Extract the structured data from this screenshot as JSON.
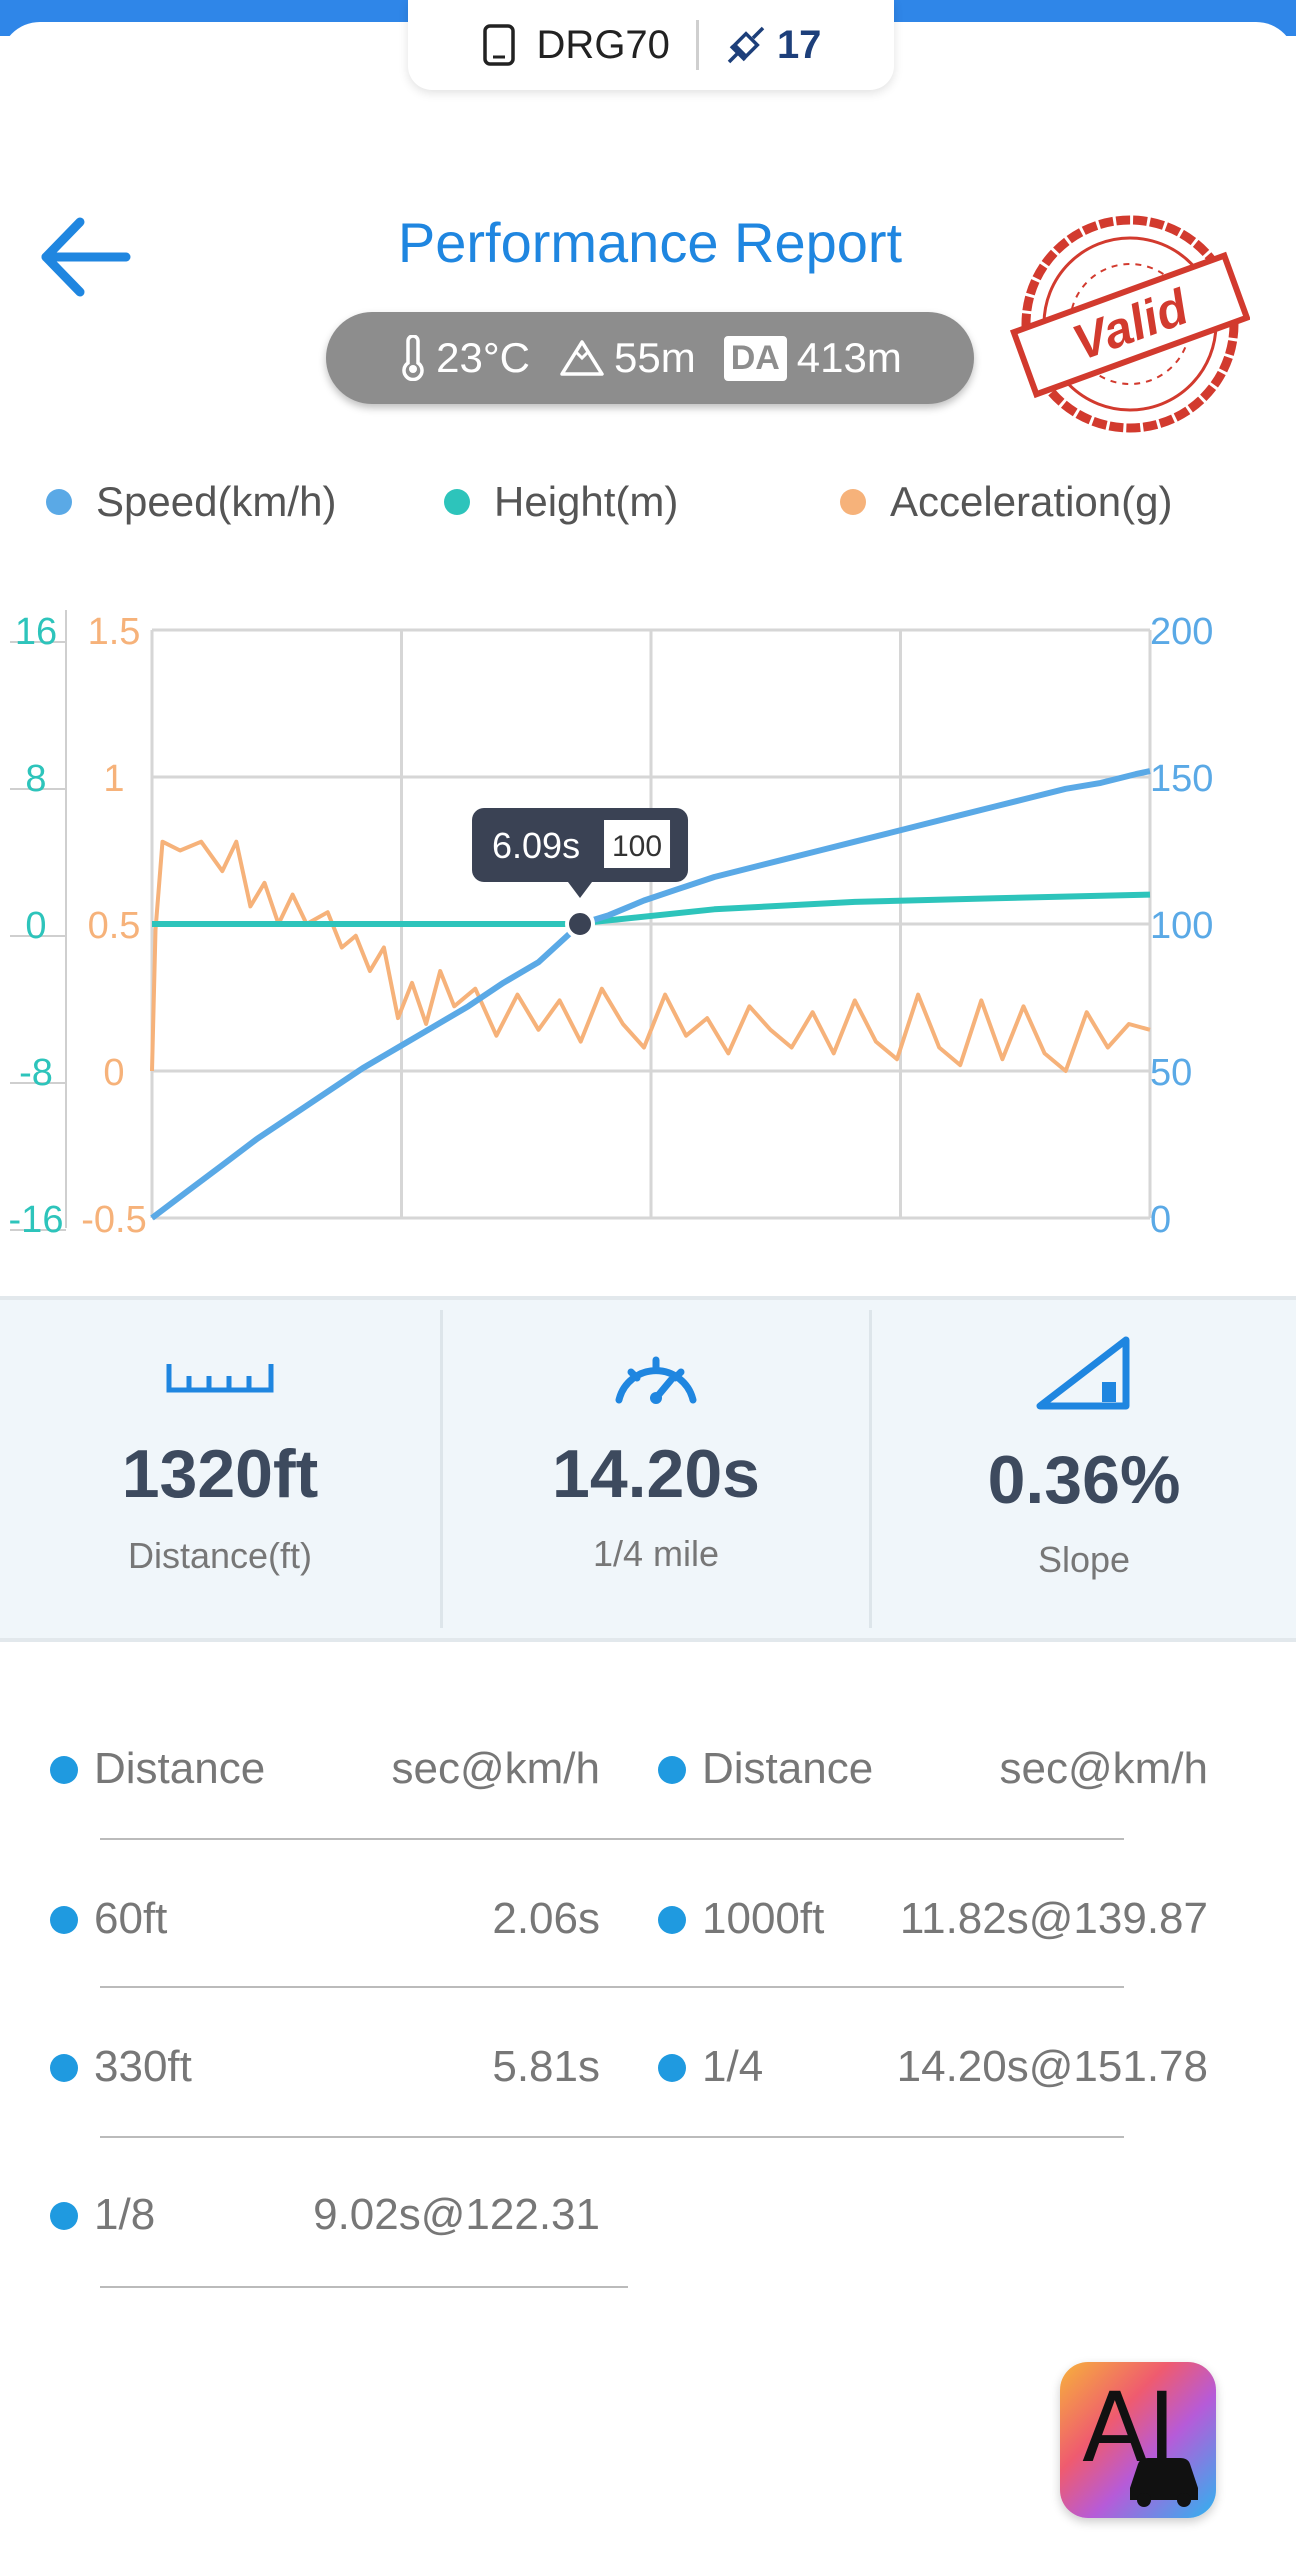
{
  "device": {
    "name": "DRG70",
    "satellites": "17"
  },
  "header": {
    "title": "Performance Report",
    "stamp_text": "Valid"
  },
  "env": {
    "temperature": "23°C",
    "altitude": "55m",
    "da_label": "DA",
    "density_altitude": "413m"
  },
  "legend": {
    "speed": "Speed(km/h)",
    "height": "Height(m)",
    "acceleration": "Acceleration(g)"
  },
  "colors": {
    "speed": "#5aa9e6",
    "height": "#2dc4bb",
    "acceleration": "#f6b27a",
    "accent": "#1f86e0"
  },
  "chart_data": {
    "type": "line",
    "xlim": [
      0,
      14.2
    ],
    "axes": {
      "height_ticks": [
        "16",
        "8",
        "0",
        "-8",
        "-16"
      ],
      "accel_ticks": [
        "1.5",
        "1",
        "0.5",
        "0",
        "-0.5"
      ],
      "speed_ticks": [
        "200",
        "150",
        "100",
        "50",
        "0"
      ]
    },
    "series": [
      {
        "name": "Speed(km/h)",
        "axis": "right",
        "ylim": [
          0,
          200
        ],
        "x": [
          0,
          0.5,
          1,
          1.5,
          2,
          2.5,
          3,
          3.5,
          4,
          4.5,
          5,
          5.5,
          6,
          6.09,
          6.5,
          7,
          7.5,
          8,
          8.5,
          9,
          9.5,
          10,
          10.5,
          11,
          11.5,
          12,
          12.5,
          13,
          13.5,
          14,
          14.2
        ],
        "y": [
          0,
          9,
          18,
          27,
          35,
          43,
          51,
          58,
          65,
          72,
          80,
          87,
          98,
          100,
          103,
          108,
          112,
          116,
          119,
          122,
          125,
          128,
          131,
          134,
          137,
          140,
          143,
          146,
          148,
          151,
          152
        ]
      },
      {
        "name": "Height(m)",
        "axis": "left-outer",
        "ylim": [
          -16,
          16
        ],
        "x": [
          0,
          2,
          4,
          6,
          8,
          10,
          12,
          14.2
        ],
        "y": [
          0,
          0,
          0,
          0,
          0.8,
          1.2,
          1.4,
          1.6
        ]
      },
      {
        "name": "Acceleration(g)",
        "axis": "left-inner",
        "ylim": [
          -0.5,
          1.5
        ],
        "x": [
          0,
          0.05,
          0.15,
          0.4,
          0.7,
          1,
          1.2,
          1.4,
          1.6,
          1.8,
          2,
          2.2,
          2.5,
          2.7,
          2.9,
          3.1,
          3.3,
          3.5,
          3.7,
          3.9,
          4.1,
          4.3,
          4.6,
          4.9,
          5.2,
          5.5,
          5.8,
          6.1,
          6.4,
          6.7,
          7,
          7.3,
          7.6,
          7.9,
          8.2,
          8.5,
          8.8,
          9.1,
          9.4,
          9.7,
          10,
          10.3,
          10.6,
          10.9,
          11.2,
          11.5,
          11.8,
          12.1,
          12.4,
          12.7,
          13,
          13.3,
          13.6,
          13.9,
          14.2
        ],
        "y": [
          0,
          0.48,
          0.78,
          0.75,
          0.78,
          0.68,
          0.78,
          0.56,
          0.64,
          0.5,
          0.6,
          0.5,
          0.54,
          0.42,
          0.46,
          0.34,
          0.42,
          0.18,
          0.3,
          0.16,
          0.34,
          0.22,
          0.28,
          0.12,
          0.26,
          0.14,
          0.24,
          0.1,
          0.28,
          0.16,
          0.08,
          0.26,
          0.12,
          0.18,
          0.06,
          0.22,
          0.14,
          0.08,
          0.2,
          0.06,
          0.24,
          0.1,
          0.04,
          0.26,
          0.08,
          0.02,
          0.24,
          0.04,
          0.22,
          0.06,
          0.0,
          0.2,
          0.08,
          0.16,
          0.14
        ]
      }
    ],
    "tooltip": {
      "time": "6.09s",
      "value": "100",
      "x": 6.09,
      "y": 100
    }
  },
  "stats": [
    {
      "icon": "ruler-icon",
      "value": "1320ft",
      "label": "Distance(ft)"
    },
    {
      "icon": "speedometer-icon",
      "value": "14.20s",
      "label": "1/4 mile"
    },
    {
      "icon": "slope-icon",
      "value": "0.36%",
      "label": "Slope"
    }
  ],
  "splits": {
    "headers": {
      "left_label": "Distance",
      "left_value": "sec@km/h",
      "right_label": "Distance",
      "right_value": "sec@km/h"
    },
    "rows": [
      {
        "left_label": "60ft",
        "left_value": "2.06s",
        "right_label": "1000ft",
        "right_value": "11.82s@139.87"
      },
      {
        "left_label": "330ft",
        "left_value": "5.81s",
        "right_label": "1/4",
        "right_value": "14.20s@151.78"
      },
      {
        "left_label": "1/8",
        "left_value": "9.02s@122.31",
        "right_label": "",
        "right_value": ""
      }
    ]
  },
  "ai_button": {
    "label": "AI"
  }
}
